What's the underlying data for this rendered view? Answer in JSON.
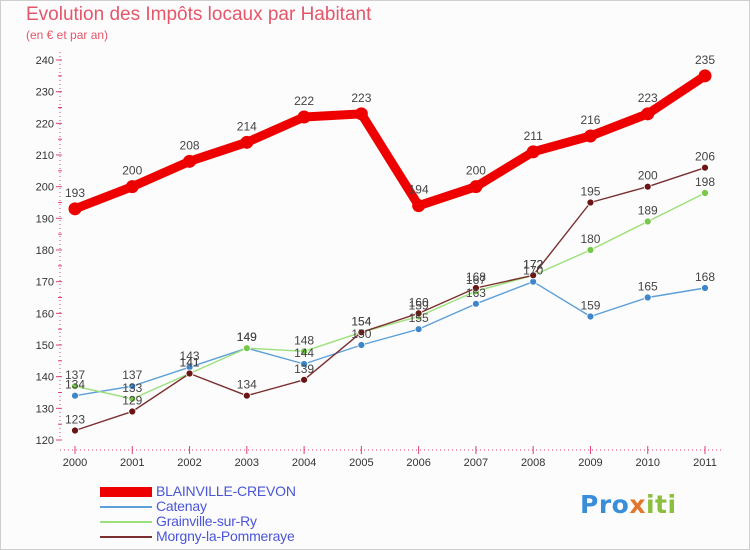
{
  "header": {
    "title": "Evolution des Impôts locaux par Habitant",
    "subtitle": "(en € et par an)"
  },
  "logo": {
    "text": "Proxiti",
    "part1": "Pro",
    "part2": "x",
    "part3": "iti"
  },
  "chart_data": {
    "type": "line",
    "title": "Evolution des Impôts locaux par Habitant",
    "subtitle": "(en € et par an)",
    "xlabel": "",
    "ylabel": "",
    "categories": [
      "2000",
      "2001",
      "2002",
      "2003",
      "2004",
      "2005",
      "2006",
      "2007",
      "2008",
      "2009",
      "2010",
      "2011"
    ],
    "ylim": [
      120,
      240
    ],
    "yticks": [
      120,
      130,
      140,
      150,
      160,
      170,
      180,
      190,
      200,
      210,
      220,
      230,
      240
    ],
    "grid": false,
    "legend_position": "bottom-left",
    "series": [
      {
        "name": "BLAINVILLE-CREVON",
        "color": "#ee0000",
        "marker_color": "#ee0000",
        "values": [
          193,
          200,
          208,
          214,
          222,
          223,
          194,
          200,
          211,
          216,
          223,
          235
        ],
        "labels": [
          "193",
          "200",
          "208",
          "214",
          "222",
          "223",
          "194",
          "200",
          "211",
          "216",
          "223",
          "235"
        ]
      },
      {
        "name": "Catenay",
        "color": "#5d9fd8",
        "marker_color": "#3d86c8",
        "values": [
          134,
          137,
          143,
          149,
          144,
          150,
          155,
          163,
          170,
          159,
          165,
          168
        ],
        "labels": [
          "134",
          "137",
          "143",
          "149",
          "144",
          "150",
          "155",
          "163",
          "170",
          "159",
          "165",
          "168"
        ]
      },
      {
        "name": "Grainville-sur-Ry",
        "color": "#9be07a",
        "marker_color": "#77c84a",
        "values": [
          137,
          133,
          141,
          149,
          148,
          154,
          159,
          167,
          172,
          180,
          189,
          198
        ],
        "labels": [
          "137",
          "133",
          "141",
          "149",
          "148",
          "154",
          "159",
          "167",
          "172",
          "180",
          "189",
          "198"
        ]
      },
      {
        "name": "Morgny-la-Pommeraye",
        "color": "#7a2e2e",
        "marker_color": "#6a1414",
        "values": [
          123,
          129,
          141,
          134,
          139,
          154,
          160,
          168,
          172,
          195,
          200,
          206
        ],
        "labels": [
          "123",
          "129",
          "141",
          "134",
          "139",
          "154",
          "160",
          "168",
          "172",
          "195",
          "200",
          "206"
        ]
      }
    ]
  }
}
